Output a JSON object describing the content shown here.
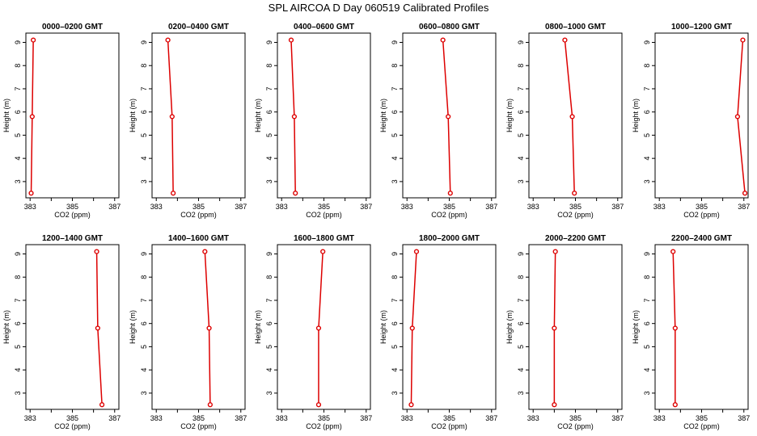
{
  "figure": {
    "title": "SPL AIRCOA D  Day 060519  Calibrated Profiles"
  },
  "colors": {
    "series": "#dd0000",
    "axis": "#000000"
  },
  "chart_data": [
    {
      "type": "line",
      "title": "0000–0200 GMT",
      "xlabel": "CO2 (ppm)",
      "ylabel": "Height (m)",
      "xlim": [
        382.8,
        387.2
      ],
      "ylim": [
        2.3,
        9.4
      ],
      "xticks": [
        383,
        385,
        387
      ],
      "xtick_labels": [
        "383",
        "385",
        "387"
      ],
      "yticks": [
        3,
        4,
        5,
        6,
        7,
        8,
        9
      ],
      "series": [
        {
          "x": [
            383.05,
            383.1,
            383.15
          ],
          "y": [
            2.5,
            5.8,
            9.1
          ]
        }
      ]
    },
    {
      "type": "line",
      "title": "0200–0400 GMT",
      "xlabel": "CO2 (ppm)",
      "ylabel": "Height (m)",
      "xlim": [
        382.8,
        387.2
      ],
      "ylim": [
        2.3,
        9.4
      ],
      "xticks": [
        383,
        385,
        387
      ],
      "xtick_labels": [
        "383",
        "385",
        "387"
      ],
      "yticks": [
        3,
        4,
        5,
        6,
        7,
        8,
        9
      ],
      "series": [
        {
          "x": [
            383.8,
            383.75,
            383.55
          ],
          "y": [
            2.5,
            5.8,
            9.1
          ]
        }
      ]
    },
    {
      "type": "line",
      "title": "0400–0600 GMT",
      "xlabel": "CO2 (ppm)",
      "ylabel": "Height (m)",
      "xlim": [
        382.8,
        387.2
      ],
      "ylim": [
        2.3,
        9.4
      ],
      "xticks": [
        383,
        385,
        387
      ],
      "xtick_labels": [
        "383",
        "385",
        "387"
      ],
      "yticks": [
        3,
        4,
        5,
        6,
        7,
        8,
        9
      ],
      "series": [
        {
          "x": [
            383.65,
            383.6,
            383.45
          ],
          "y": [
            2.5,
            5.8,
            9.1
          ]
        }
      ]
    },
    {
      "type": "line",
      "title": "0600–0800 GMT",
      "xlabel": "CO2 (ppm)",
      "ylabel": "Height (m)",
      "xlim": [
        382.8,
        387.2
      ],
      "ylim": [
        2.3,
        9.4
      ],
      "xticks": [
        383,
        385,
        387
      ],
      "xtick_labels": [
        "383",
        "385",
        "387"
      ],
      "yticks": [
        3,
        4,
        5,
        6,
        7,
        8,
        9
      ],
      "series": [
        {
          "x": [
            385.05,
            384.95,
            384.7
          ],
          "y": [
            2.5,
            5.8,
            9.1
          ]
        }
      ]
    },
    {
      "type": "line",
      "title": "0800–1000 GMT",
      "xlabel": "CO2 (ppm)",
      "ylabel": "Height (m)",
      "xlim": [
        382.8,
        387.2
      ],
      "ylim": [
        2.3,
        9.4
      ],
      "xticks": [
        383,
        385,
        387
      ],
      "xtick_labels": [
        "383",
        "385",
        "387"
      ],
      "yticks": [
        3,
        4,
        5,
        6,
        7,
        8,
        9
      ],
      "series": [
        {
          "x": [
            384.95,
            384.85,
            384.5
          ],
          "y": [
            2.5,
            5.8,
            9.1
          ]
        }
      ]
    },
    {
      "type": "line",
      "title": "1000–1200 GMT",
      "xlabel": "CO2 (ppm)",
      "ylabel": "Height (m)",
      "xlim": [
        382.8,
        387.2
      ],
      "ylim": [
        2.3,
        9.4
      ],
      "xticks": [
        383,
        385,
        387
      ],
      "xtick_labels": [
        "383",
        "385",
        "387"
      ],
      "yticks": [
        3,
        4,
        5,
        6,
        7,
        8,
        9
      ],
      "series": [
        {
          "x": [
            387.05,
            386.7,
            386.95
          ],
          "y": [
            2.5,
            5.8,
            9.1
          ]
        }
      ]
    },
    {
      "type": "line",
      "title": "1200–1400 GMT",
      "xlabel": "CO2 (ppm)",
      "ylabel": "Height (m)",
      "xlim": [
        382.8,
        387.2
      ],
      "ylim": [
        2.3,
        9.4
      ],
      "xticks": [
        383,
        385,
        387
      ],
      "xtick_labels": [
        "383",
        "385",
        "387"
      ],
      "yticks": [
        3,
        4,
        5,
        6,
        7,
        8,
        9
      ],
      "series": [
        {
          "x": [
            386.4,
            386.2,
            386.15
          ],
          "y": [
            2.5,
            5.8,
            9.1
          ]
        }
      ]
    },
    {
      "type": "line",
      "title": "1400–1600 GMT",
      "xlabel": "CO2 (ppm)",
      "ylabel": "Height (m)",
      "xlim": [
        382.8,
        387.2
      ],
      "ylim": [
        2.3,
        9.4
      ],
      "xticks": [
        383,
        385,
        387
      ],
      "xtick_labels": [
        "383",
        "385",
        "387"
      ],
      "yticks": [
        3,
        4,
        5,
        6,
        7,
        8,
        9
      ],
      "series": [
        {
          "x": [
            385.55,
            385.5,
            385.3
          ],
          "y": [
            2.5,
            5.8,
            9.1
          ]
        }
      ]
    },
    {
      "type": "line",
      "title": "1600–1800 GMT",
      "xlabel": "CO2 (ppm)",
      "ylabel": "Height (m)",
      "xlim": [
        382.8,
        387.2
      ],
      "ylim": [
        2.3,
        9.4
      ],
      "xticks": [
        383,
        385,
        387
      ],
      "xtick_labels": [
        "383",
        "385",
        "387"
      ],
      "yticks": [
        3,
        4,
        5,
        6,
        7,
        8,
        9
      ],
      "series": [
        {
          "x": [
            384.75,
            384.75,
            384.95
          ],
          "y": [
            2.5,
            5.8,
            9.1
          ]
        }
      ]
    },
    {
      "type": "line",
      "title": "1800–2000 GMT",
      "xlabel": "CO2 (ppm)",
      "ylabel": "Height (m)",
      "xlim": [
        382.8,
        387.2
      ],
      "ylim": [
        2.3,
        9.4
      ],
      "xticks": [
        383,
        385,
        387
      ],
      "xtick_labels": [
        "383",
        "385",
        "387"
      ],
      "yticks": [
        3,
        4,
        5,
        6,
        7,
        8,
        9
      ],
      "series": [
        {
          "x": [
            383.2,
            383.25,
            383.45
          ],
          "y": [
            2.5,
            5.8,
            9.1
          ]
        }
      ]
    },
    {
      "type": "line",
      "title": "2000–2200 GMT",
      "xlabel": "CO2 (ppm)",
      "ylabel": "Height (m)",
      "xlim": [
        382.8,
        387.2
      ],
      "ylim": [
        2.3,
        9.4
      ],
      "xticks": [
        383,
        385,
        387
      ],
      "xtick_labels": [
        "383",
        "385",
        "387"
      ],
      "yticks": [
        3,
        4,
        5,
        6,
        7,
        8,
        9
      ],
      "series": [
        {
          "x": [
            384.0,
            384.0,
            384.05
          ],
          "y": [
            2.5,
            5.8,
            9.1
          ]
        }
      ]
    },
    {
      "type": "line",
      "title": "2200–2400 GMT",
      "xlabel": "CO2 (ppm)",
      "ylabel": "Height (m)",
      "xlim": [
        382.8,
        387.2
      ],
      "ylim": [
        2.3,
        9.4
      ],
      "xticks": [
        383,
        385,
        387
      ],
      "xtick_labels": [
        "383",
        "385",
        "387"
      ],
      "yticks": [
        3,
        4,
        5,
        6,
        7,
        8,
        9
      ],
      "series": [
        {
          "x": [
            383.75,
            383.75,
            383.65
          ],
          "y": [
            2.5,
            5.8,
            9.1
          ]
        }
      ]
    }
  ]
}
